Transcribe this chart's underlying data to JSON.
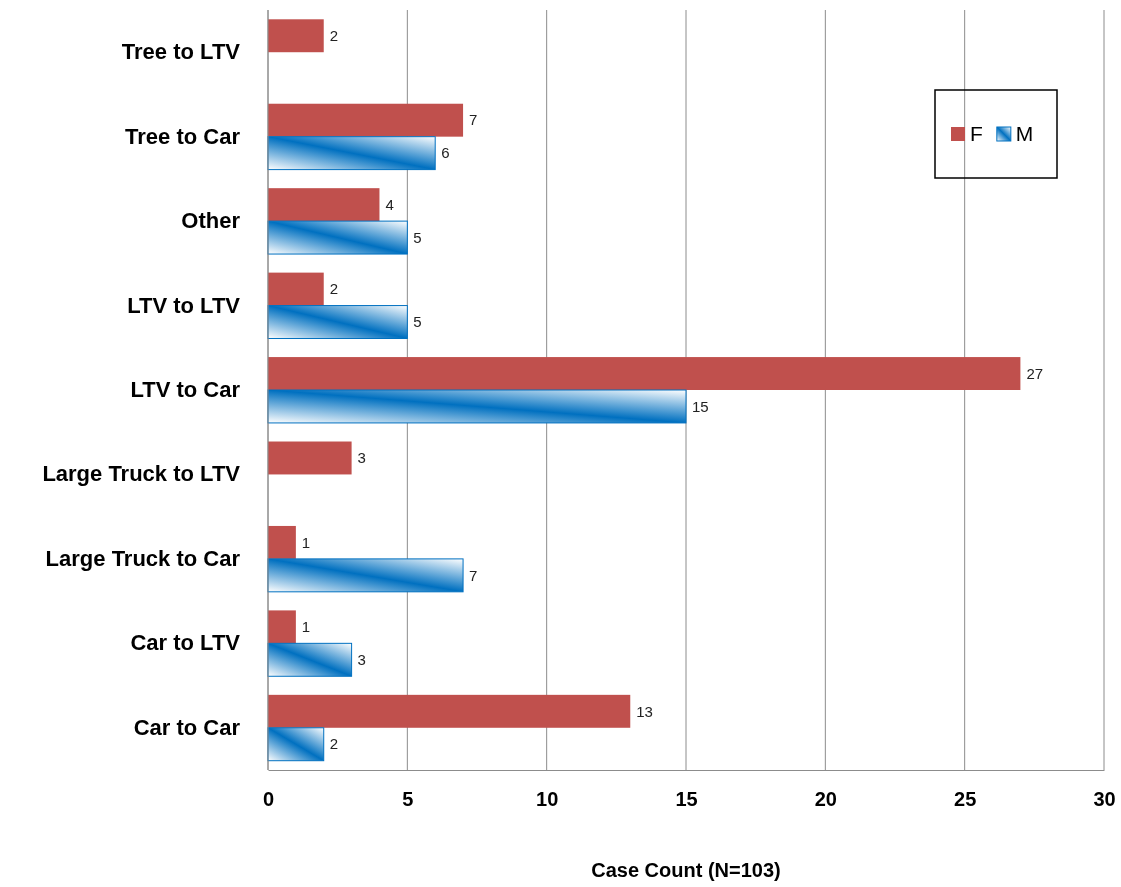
{
  "chart_data": {
    "type": "bar",
    "orientation": "horizontal",
    "xlabel": "Case Count (N=103)",
    "categories": [
      "Tree to LTV",
      "Tree to Car",
      "Other",
      "LTV to LTV",
      "LTV to Car",
      "Large Truck to LTV",
      "Large Truck to Car",
      "Car to LTV",
      "Car to Car"
    ],
    "series": [
      {
        "name": "F",
        "color": "#c0504d",
        "values": [
          2,
          7,
          4,
          2,
          27,
          3,
          1,
          1,
          13
        ]
      },
      {
        "name": "M",
        "color": "#0070c0",
        "values": [
          null,
          6,
          5,
          5,
          15,
          null,
          7,
          3,
          2
        ]
      }
    ],
    "xlim": [
      0,
      30
    ],
    "xticks": [
      0,
      5,
      10,
      15,
      20,
      25,
      30
    ],
    "grid": "x",
    "legend": "top right",
    "data_labels": true
  }
}
